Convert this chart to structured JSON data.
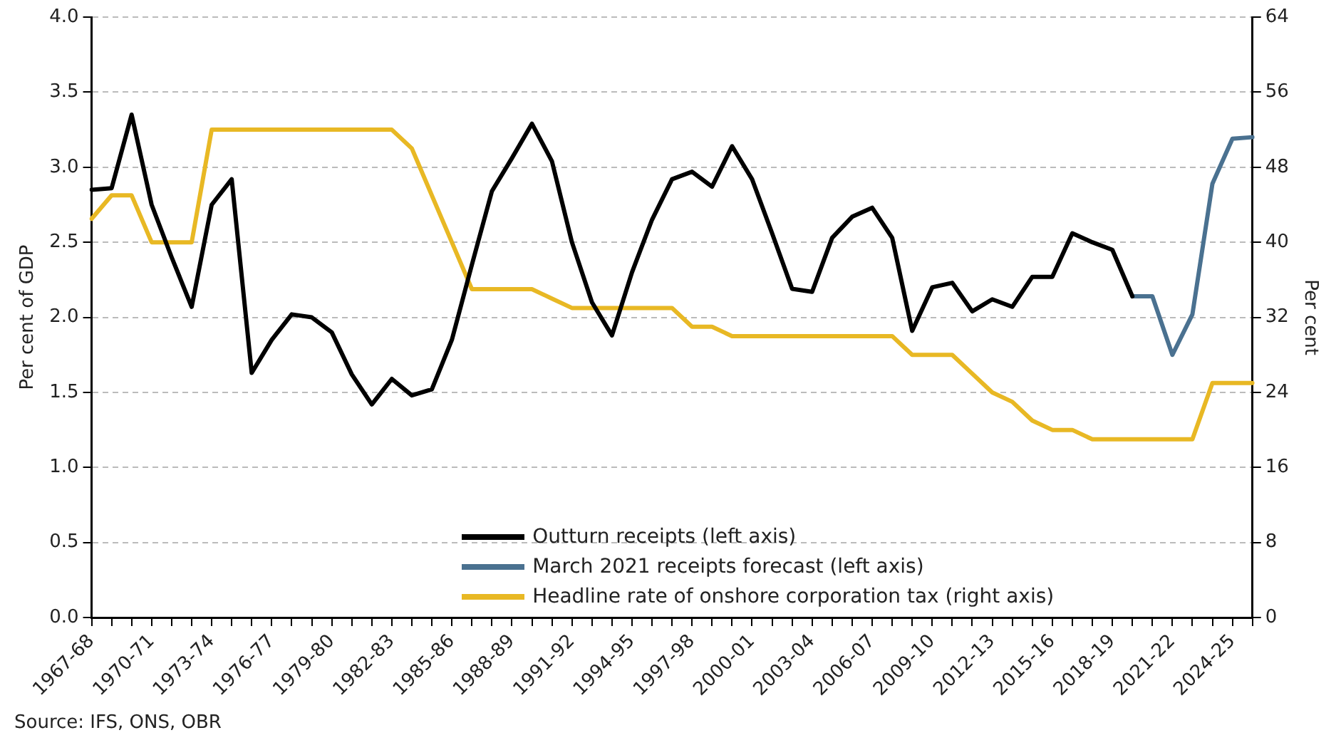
{
  "chart_data": {
    "type": "line",
    "categories": [
      "1967-68",
      null,
      null,
      "1970-71",
      null,
      null,
      "1973-74",
      null,
      null,
      "1976-77",
      null,
      null,
      "1979-80",
      null,
      null,
      "1982-83",
      null,
      null,
      "1985-86",
      null,
      null,
      "1988-89",
      null,
      null,
      "1991-92",
      null,
      null,
      "1994-95",
      null,
      null,
      "1997-98",
      null,
      null,
      "2000-01",
      null,
      null,
      "2003-04",
      null,
      null,
      "2006-07",
      null,
      null,
      "2009-10",
      null,
      null,
      "2012-13",
      null,
      null,
      "2015-16",
      null,
      null,
      "2018-19",
      null,
      null,
      "2021-22",
      null,
      null,
      "2024-25",
      null
    ],
    "series": [
      {
        "name": "Outturn receipts (left axis)",
        "color": "#000000",
        "values": [
          2.85,
          2.86,
          3.35,
          2.75,
          2.4,
          2.07,
          2.75,
          2.92,
          1.63,
          1.85,
          2.02,
          2.0,
          1.9,
          1.62,
          1.42,
          1.59,
          1.48,
          1.52,
          1.85,
          2.35,
          2.84,
          3.06,
          3.29,
          3.04,
          2.5,
          2.1,
          1.88,
          2.3,
          2.65,
          2.92,
          2.97,
          2.87,
          3.14,
          2.92,
          2.56,
          2.19,
          2.17,
          2.53,
          2.67,
          2.73,
          2.53,
          1.91,
          2.2,
          2.23,
          2.04,
          2.12,
          2.07,
          2.27,
          2.27,
          2.56,
          2.5,
          2.45,
          2.14,
          null,
          null,
          null,
          null,
          null,
          null
        ]
      },
      {
        "name": "March 2021 receipts forecast (left axis)",
        "color": "#4a7190",
        "values": [
          null,
          null,
          null,
          null,
          null,
          null,
          null,
          null,
          null,
          null,
          null,
          null,
          null,
          null,
          null,
          null,
          null,
          null,
          null,
          null,
          null,
          null,
          null,
          null,
          null,
          null,
          null,
          null,
          null,
          null,
          null,
          null,
          null,
          null,
          null,
          null,
          null,
          null,
          null,
          null,
          null,
          null,
          null,
          null,
          null,
          null,
          null,
          null,
          null,
          null,
          null,
          null,
          2.14,
          2.14,
          1.75,
          2.02,
          2.89,
          3.19,
          3.2
        ]
      },
      {
        "name": "Headline rate of onshore corporation tax (right axis)",
        "color": "#e8b824",
        "axis": "y2",
        "values": [
          42.5,
          45,
          45,
          40,
          40,
          40,
          52,
          52,
          52,
          52,
          52,
          52,
          52,
          52,
          52,
          52,
          50,
          45,
          40,
          35,
          35,
          35,
          35,
          34,
          33,
          33,
          33,
          33,
          33,
          33,
          31,
          31,
          30,
          30,
          30,
          30,
          30,
          30,
          30,
          30,
          30,
          28,
          28,
          28,
          26,
          24,
          23,
          21,
          20,
          20,
          19,
          19,
          19,
          19,
          19,
          19,
          25,
          25,
          25
        ]
      }
    ],
    "ylabel": "Per cent of GDP",
    "y2label": "Per cent",
    "ylim": [
      0,
      4
    ],
    "yticks": [
      {
        "value": 0,
        "label": "0.0"
      },
      {
        "value": 0.5,
        "label": "0.5"
      },
      {
        "value": 1,
        "label": "1.0"
      },
      {
        "value": 1.5,
        "label": "1.5"
      },
      {
        "value": 2,
        "label": "2.0"
      },
      {
        "value": 2.5,
        "label": "2.5"
      },
      {
        "value": 3,
        "label": "3.0"
      },
      {
        "value": 3.5,
        "label": "3.5"
      },
      {
        "value": 4,
        "label": "4.0"
      }
    ],
    "y2lim": [
      0,
      64
    ],
    "y2ticks": [
      0,
      8,
      16,
      24,
      32,
      40,
      48,
      56,
      64
    ],
    "grid": "y",
    "legend": "bottom",
    "marker": "none",
    "line_style": "solid",
    "annotations": [
      "Source: IFS, ONS, OBR"
    ]
  }
}
